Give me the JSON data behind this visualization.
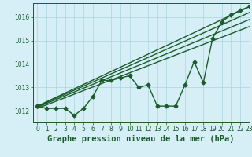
{
  "title": "Graphe pression niveau de la mer (hPa)",
  "background_color": "#d6eff7",
  "grid_color": "#aad4e0",
  "line_color": "#1a5c2a",
  "xlim": [
    -0.5,
    23
  ],
  "ylim": [
    1011.5,
    1016.6
  ],
  "yticks": [
    1012,
    1013,
    1014,
    1015,
    1016
  ],
  "xticks": [
    0,
    1,
    2,
    3,
    4,
    5,
    6,
    7,
    8,
    9,
    10,
    11,
    12,
    13,
    14,
    15,
    16,
    17,
    18,
    19,
    20,
    21,
    22,
    23
  ],
  "data_line": [
    1012.2,
    1012.1,
    1012.1,
    1012.1,
    1011.8,
    1012.1,
    1012.6,
    1013.3,
    1013.3,
    1013.4,
    1013.5,
    1013.0,
    1013.1,
    1012.2,
    1012.2,
    1012.2,
    1013.1,
    1014.1,
    1013.2,
    1015.1,
    1015.8,
    1016.1,
    1016.3,
    1016.45
  ],
  "trend_lines": [
    {
      "x0": 0,
      "y0": 1012.2,
      "x1": 23,
      "y1": 1016.45
    },
    {
      "x0": 0,
      "y0": 1012.18,
      "x1": 23,
      "y1": 1016.2
    },
    {
      "x0": 0,
      "y0": 1012.15,
      "x1": 23,
      "y1": 1015.9
    },
    {
      "x0": 0,
      "y0": 1012.1,
      "x1": 23,
      "y1": 1015.6
    }
  ],
  "marker": "D",
  "markersize": 2.5,
  "linewidth": 1.0,
  "title_fontsize": 7.5,
  "tick_fontsize": 5.5
}
